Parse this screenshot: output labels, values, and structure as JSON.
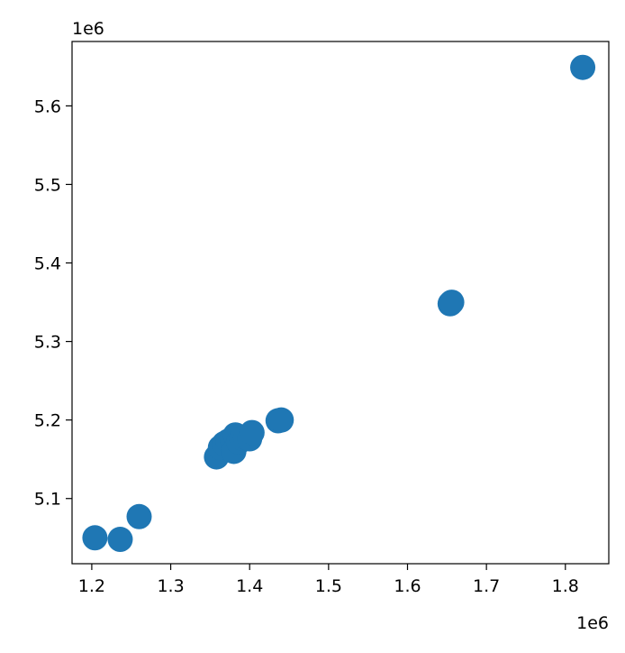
{
  "chart_data": {
    "type": "scatter",
    "title": "",
    "xlabel": "",
    "ylabel": "",
    "x_offset_label": "1e6",
    "y_offset_label": "1e6",
    "xlim": [
      1.175,
      1.855
    ],
    "ylim": [
      5.017,
      5.682
    ],
    "x_ticks": [
      1.2,
      1.3,
      1.4,
      1.5,
      1.6,
      1.7,
      1.8
    ],
    "x_tick_labels": [
      "1.2",
      "1.3",
      "1.4",
      "1.5",
      "1.6",
      "1.7",
      "1.8"
    ],
    "y_ticks": [
      5.1,
      5.2,
      5.3,
      5.4,
      5.5,
      5.6
    ],
    "y_tick_labels": [
      "5.1",
      "5.2",
      "5.3",
      "5.4",
      "5.5",
      "5.6"
    ],
    "grid": false,
    "marker_color": "#1f77b4",
    "series": [
      {
        "points": [
          {
            "x": 1.204,
            "y": 5.05
          },
          {
            "x": 1.236,
            "y": 5.048
          },
          {
            "x": 1.26,
            "y": 5.077
          },
          {
            "x": 1.358,
            "y": 5.153
          },
          {
            "x": 1.363,
            "y": 5.165
          },
          {
            "x": 1.368,
            "y": 5.17
          },
          {
            "x": 1.373,
            "y": 5.173
          },
          {
            "x": 1.378,
            "y": 5.176
          },
          {
            "x": 1.38,
            "y": 5.16
          },
          {
            "x": 1.382,
            "y": 5.181
          },
          {
            "x": 1.386,
            "y": 5.172
          },
          {
            "x": 1.39,
            "y": 5.177
          },
          {
            "x": 1.395,
            "y": 5.178
          },
          {
            "x": 1.4,
            "y": 5.176
          },
          {
            "x": 1.403,
            "y": 5.184
          },
          {
            "x": 1.436,
            "y": 5.199
          },
          {
            "x": 1.44,
            "y": 5.2
          },
          {
            "x": 1.654,
            "y": 5.348
          },
          {
            "x": 1.656,
            "y": 5.35
          },
          {
            "x": 1.822,
            "y": 5.649
          }
        ]
      }
    ]
  }
}
